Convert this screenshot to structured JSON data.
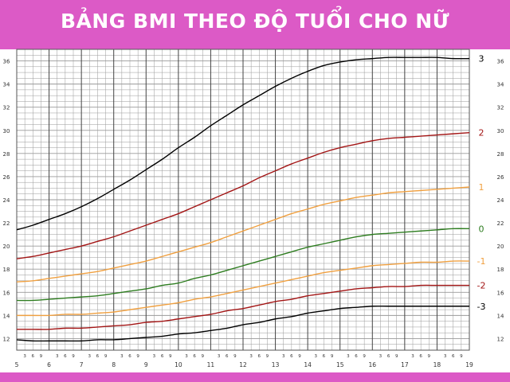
{
  "title": "BẢNG BMI THEO ĐỘ TUỔI CHO NỮ",
  "colors": {
    "background": "#dc5ac6",
    "plot": "#ffffff",
    "grid": "#9a9a9a",
    "curve_3": "#000000",
    "curve_2": "#a31515",
    "curve_1": "#f0a040",
    "curve_0": "#2e7d20",
    "curve_m1": "#f0a040",
    "curve_m2": "#a31515",
    "curve_m3": "#000000"
  },
  "chart_data": {
    "type": "line",
    "title": "BẢNG BMI THEO ĐỘ TUỔI CHO NỮ",
    "xlabel": "",
    "ylabel": "",
    "xlim": [
      5,
      19
    ],
    "ylim": [
      11,
      37
    ],
    "y_ticks": [
      12,
      14,
      16,
      18,
      20,
      22,
      24,
      26,
      28,
      30,
      32,
      34,
      36
    ],
    "x_ticks": [
      5,
      6,
      7,
      8,
      9,
      10,
      11,
      12,
      13,
      14,
      15,
      16,
      17,
      18,
      19
    ],
    "x_minor_labels": [
      "3",
      "6",
      "9"
    ],
    "grid": true,
    "x": [
      5,
      5.5,
      6,
      6.5,
      7,
      7.5,
      8,
      8.5,
      9,
      9.5,
      10,
      10.5,
      11,
      11.5,
      12,
      12.5,
      13,
      13.5,
      14,
      14.5,
      15,
      15.5,
      16,
      16.5,
      17,
      17.5,
      18,
      18.5,
      19
    ],
    "series": [
      {
        "name": "3",
        "color": "#000000",
        "values": [
          21.4,
          21.8,
          22.3,
          22.8,
          23.4,
          24.1,
          24.9,
          25.7,
          26.6,
          27.5,
          28.5,
          29.4,
          30.4,
          31.3,
          32.2,
          33.0,
          33.8,
          34.5,
          35.1,
          35.6,
          35.9,
          36.1,
          36.2,
          36.3,
          36.3,
          36.3,
          36.3,
          36.2,
          36.2
        ]
      },
      {
        "name": "2",
        "color": "#a31515",
        "values": [
          18.9,
          19.1,
          19.4,
          19.7,
          20.0,
          20.4,
          20.8,
          21.3,
          21.8,
          22.3,
          22.8,
          23.4,
          24.0,
          24.6,
          25.2,
          25.9,
          26.5,
          27.1,
          27.6,
          28.1,
          28.5,
          28.8,
          29.1,
          29.3,
          29.4,
          29.5,
          29.6,
          29.7,
          29.8
        ]
      },
      {
        "name": "1",
        "color": "#f0a040",
        "values": [
          16.9,
          17.0,
          17.2,
          17.4,
          17.6,
          17.8,
          18.1,
          18.4,
          18.7,
          19.1,
          19.5,
          19.9,
          20.3,
          20.8,
          21.3,
          21.8,
          22.3,
          22.8,
          23.2,
          23.6,
          23.9,
          24.2,
          24.4,
          24.6,
          24.7,
          24.8,
          24.9,
          25.0,
          25.1
        ]
      },
      {
        "name": "0",
        "color": "#2e7d20",
        "values": [
          15.3,
          15.3,
          15.4,
          15.5,
          15.6,
          15.7,
          15.9,
          16.1,
          16.3,
          16.6,
          16.8,
          17.2,
          17.5,
          17.9,
          18.3,
          18.7,
          19.1,
          19.5,
          19.9,
          20.2,
          20.5,
          20.8,
          21.0,
          21.1,
          21.2,
          21.3,
          21.4,
          21.5,
          21.5
        ]
      },
      {
        "name": "-1",
        "color": "#f0a040",
        "values": [
          14.0,
          14.0,
          14.0,
          14.1,
          14.1,
          14.2,
          14.3,
          14.5,
          14.7,
          14.9,
          15.1,
          15.4,
          15.6,
          15.9,
          16.2,
          16.5,
          16.8,
          17.1,
          17.4,
          17.7,
          17.9,
          18.1,
          18.3,
          18.4,
          18.5,
          18.6,
          18.6,
          18.7,
          18.7
        ]
      },
      {
        "name": "-2",
        "color": "#a31515",
        "values": [
          12.8,
          12.8,
          12.8,
          12.9,
          12.9,
          13.0,
          13.1,
          13.2,
          13.4,
          13.5,
          13.7,
          13.9,
          14.1,
          14.4,
          14.6,
          14.9,
          15.2,
          15.4,
          15.7,
          15.9,
          16.1,
          16.3,
          16.4,
          16.5,
          16.5,
          16.6,
          16.6,
          16.6,
          16.6
        ]
      },
      {
        "name": "-3",
        "color": "#000000",
        "values": [
          11.9,
          11.8,
          11.8,
          11.8,
          11.8,
          11.9,
          11.9,
          12.0,
          12.1,
          12.2,
          12.4,
          12.5,
          12.7,
          12.9,
          13.2,
          13.4,
          13.7,
          13.9,
          14.2,
          14.4,
          14.6,
          14.7,
          14.8,
          14.8,
          14.8,
          14.8,
          14.8,
          14.8,
          14.8
        ]
      }
    ]
  }
}
